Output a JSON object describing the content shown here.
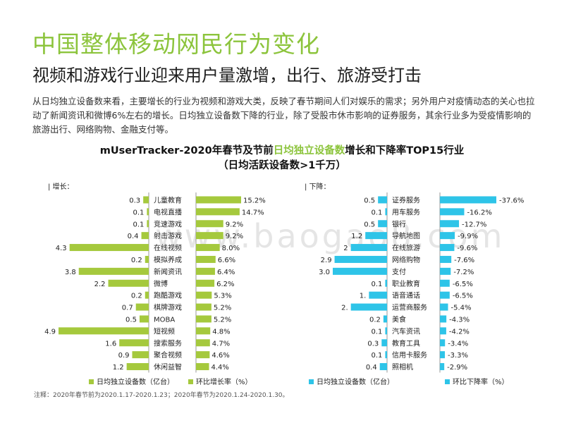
{
  "header": {
    "title": "中国整体移动网民行为变化",
    "subtitle": "视频和游戏行业迎来用户量激增，出行、旅游受打击",
    "description": "从日均独立设备数来看，主要增长的行业为视频和游戏大类，反映了春节期间人们对娱乐的需求；另外用户对疫情动态的关心也拉动了新闻资讯和微博6%左右的增长。日均独立设备数下降的行业，除了受股市休市影响的证券服务，其余行业多为受疫情影响的旅游出行、网络购物、金融支付等。"
  },
  "chart_title": {
    "part1": "mUserTracker-2020年春节及节前",
    "highlight": "日均独立设备数",
    "part2": "增长和下降率TOP15行业",
    "line2": "（日均活跃设备数>1千万）"
  },
  "watermark": "www.baogao8.com",
  "note": "注释：2020年春节前为2020.1.17-2020.1.23；2020年春节为2020.1.24-2020.1.30。",
  "colors": {
    "green": "#a5c93d",
    "blue": "#2ec4e8",
    "title_green": "#8cc43c"
  },
  "chart_data": [
    {
      "type": "bar",
      "panel_label": "| 增长：",
      "categories": [
        "儿童教育",
        "电视直播",
        "竞速游戏",
        "射击游戏",
        "在线视频",
        "模拟养成",
        "新闻资讯",
        "微博",
        "跑酷游戏",
        "棋牌游戏",
        "MOBA",
        "短视频",
        "搜索服务",
        "聚合视频",
        "休闲益智"
      ],
      "series": [
        {
          "name": "日均独立设备数（亿台）",
          "values": [
            0.3,
            0.1,
            0.1,
            0.4,
            4.3,
            0.2,
            3.8,
            2.2,
            0.2,
            0.7,
            0.5,
            4.9,
            1.6,
            0.9,
            1.2
          ],
          "labels": [
            "0.3",
            "0.1",
            "0.1",
            "0.4",
            "4.3",
            "0.2",
            "3.8",
            "2.2",
            "0.2",
            "0.7",
            "0.5",
            "4.9",
            "1.6",
            "0.9",
            "1.2"
          ]
        },
        {
          "name": "环比增长率（%）",
          "values": [
            15.2,
            14.7,
            9.2,
            9.2,
            8.0,
            6.6,
            6.4,
            6.2,
            5.3,
            5.2,
            5.2,
            4.8,
            4.7,
            4.6,
            4.4
          ],
          "labels": [
            "15.2%",
            "14.7%",
            "9.2%",
            "9.2%",
            "8.0%",
            "6.6%",
            "6.4%",
            "6.2%",
            "5.3%",
            "5.2%",
            "5.2%",
            "4.8%",
            "4.7%",
            "4.6%",
            "4.4%"
          ]
        }
      ],
      "legend": [
        "日均独立设备数（亿台）",
        "环比增长率（%）"
      ]
    },
    {
      "type": "bar",
      "panel_label": "| 下降：",
      "categories": [
        "证券服务",
        "用车服务",
        "银行",
        "导航地图",
        "在线旅游",
        "网络购物",
        "支付",
        "职业教育",
        "语音通话",
        "运营商服务",
        "美食",
        "汽车资讯",
        "教育工具",
        "信用卡服务",
        "照相机"
      ],
      "series": [
        {
          "name": "日均独立设备数（亿台）",
          "values": [
            0.5,
            0.1,
            0.5,
            1.2,
            2,
            2.9,
            3.0,
            0.1,
            1,
            2,
            0.2,
            0.1,
            0.3,
            0.1,
            0.4
          ],
          "labels": [
            "0.5",
            "0.1",
            "0.5",
            "1.2",
            "2",
            "2.9",
            "3.0",
            "0.1",
            "1.",
            "2.",
            "0.2",
            "0.1",
            "0.3",
            "0.1",
            "0.4"
          ]
        },
        {
          "name": "环比下降率（%）",
          "values": [
            -37.6,
            -16.2,
            -12.7,
            -9.9,
            -9.6,
            -7.6,
            -7.2,
            -6.5,
            -6.5,
            -5.4,
            -4.3,
            -4.2,
            -3.4,
            -3.3,
            -2.9
          ],
          "labels": [
            "-37.6%",
            "-16.2%",
            "-12.7%",
            "-9.9%",
            "-9.6%",
            "-7.6%",
            "-7.2%",
            "-6.5%",
            "-6.5%",
            "-5.4%",
            "-4.3%",
            "-4.2%",
            "-3.4%",
            "-3.3%",
            "-2.9%"
          ]
        }
      ],
      "legend": [
        "日均独立设备数（亿台）",
        "环比下降率（%）"
      ]
    }
  ]
}
